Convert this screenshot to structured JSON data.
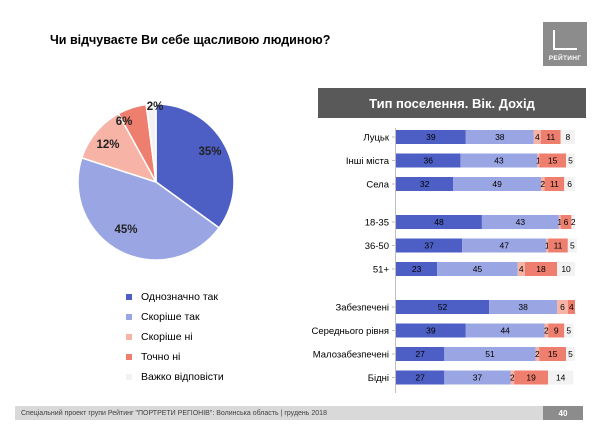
{
  "question": "Чи відчуваєте Ви себе щасливою людиною?",
  "logo_text": "РЕЙТИНГ",
  "section_title": "Тип поселення. Вік. Дохід",
  "footer_text": "Спеціальний проект групи Рейтинг \"ПОРТРЕТИ РЕГІОНІВ\": Волинська область | грудень 2018",
  "page_number": "40",
  "colors": {
    "c1": "#4d5fc4",
    "c2": "#9aa5e3",
    "c3": "#f6b3a6",
    "c4": "#ee7e6e",
    "c5": "#f2f2f2"
  },
  "chart_data": [
    {
      "type": "pie",
      "slices": [
        {
          "label": "Однозначно так",
          "value": 35,
          "display": "35%"
        },
        {
          "label": "Скоріше  так",
          "value": 45,
          "display": "45%"
        },
        {
          "label": "Скоріше  ні",
          "value": 12,
          "display": "12%"
        },
        {
          "label": "Точно ні",
          "value": 6,
          "display": "6%"
        },
        {
          "label": "Важко відповісти",
          "value": 2,
          "display": "2%"
        }
      ]
    },
    {
      "type": "bar",
      "orientation": "horizontal",
      "stacked": true,
      "series_names": [
        "Однозначно так",
        "Скоріше  так",
        "Скоріше  ні",
        "Точно ні",
        "Важко відповісти"
      ],
      "groups": [
        {
          "rows": [
            {
              "label": "Луцьк",
              "values": [
                39,
                38,
                4,
                11,
                8
              ]
            },
            {
              "label": "Інші міста",
              "values": [
                36,
                43,
                1,
                15,
                5
              ]
            },
            {
              "label": "Села",
              "values": [
                32,
                49,
                2,
                11,
                6
              ]
            }
          ]
        },
        {
          "rows": [
            {
              "label": "18-35",
              "values": [
                48,
                43,
                1,
                6,
                2
              ]
            },
            {
              "label": "36-50",
              "values": [
                37,
                47,
                1,
                11,
                5
              ]
            },
            {
              "label": "51+",
              "values": [
                23,
                45,
                4,
                18,
                10
              ]
            }
          ]
        },
        {
          "rows": [
            {
              "label": "Забезпечені",
              "values": [
                52,
                38,
                6,
                4,
                0
              ]
            },
            {
              "label": "Середнього рівня",
              "values": [
                39,
                44,
                2,
                9,
                5
              ]
            },
            {
              "label": "Малозабезпечені",
              "values": [
                27,
                51,
                2,
                15,
                5
              ]
            },
            {
              "label": "Бідні",
              "values": [
                27,
                37,
                2,
                19,
                14
              ]
            }
          ]
        }
      ]
    }
  ]
}
